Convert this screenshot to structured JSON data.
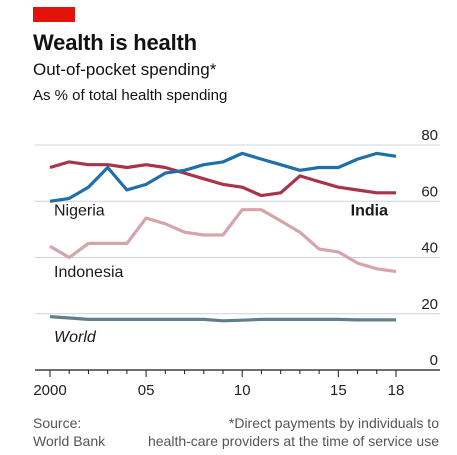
{
  "header": {
    "title": "Wealth is health",
    "subtitle": "Out-of-pocket spending*",
    "unit": "As % of total health spending"
  },
  "footer": {
    "source_label": "Source:",
    "source_name": "World Bank",
    "footnote_line1": "*Direct payments by individuals to",
    "footnote_line2": "health-care providers at the time of service use"
  },
  "colors": {
    "brand_red": "#e3120b",
    "nigeria": "#1f6fa8",
    "india": "#a8334a",
    "indonesia": "#d6a4ab",
    "world": "#5f7f8a",
    "grid": "#c9d5dc",
    "axis": "#1a1a1a"
  },
  "chart_data": {
    "type": "line",
    "title": "Wealth is health",
    "subtitle": "Out-of-pocket spending*",
    "ylabel": "As % of total health spending",
    "xlim": [
      2000,
      2018
    ],
    "ylim": [
      0,
      80
    ],
    "yticks": [
      0,
      20,
      40,
      60,
      80
    ],
    "xticks": [
      2000,
      2005,
      2010,
      2015,
      2018
    ],
    "xtick_labels": [
      "2000",
      "05",
      "10",
      "15",
      "18"
    ],
    "grid": true,
    "x": [
      2000,
      2001,
      2002,
      2003,
      2004,
      2005,
      2006,
      2007,
      2008,
      2009,
      2010,
      2011,
      2012,
      2013,
      2014,
      2015,
      2016,
      2017,
      2018
    ],
    "series": [
      {
        "name": "Nigeria",
        "color": "#1f6fa8",
        "values": [
          60,
          61,
          65,
          72,
          64,
          66,
          70,
          71,
          73,
          74,
          77,
          75,
          73,
          71,
          72,
          72,
          75,
          77,
          76
        ]
      },
      {
        "name": "India",
        "color": "#a8334a",
        "values": [
          72,
          74,
          73,
          73,
          72,
          73,
          72,
          70,
          68,
          66,
          65,
          62,
          63,
          69,
          67,
          65,
          64,
          63,
          63
        ]
      },
      {
        "name": "Indonesia",
        "color": "#d6a4ab",
        "values": [
          44,
          40,
          45,
          45,
          45,
          54,
          52,
          49,
          48,
          48,
          57,
          57,
          53,
          49,
          43,
          42,
          38,
          36,
          35
        ]
      },
      {
        "name": "World",
        "color": "#5f7f8a",
        "values": [
          19,
          18.5,
          18,
          18,
          18,
          18,
          18,
          18,
          18,
          17.5,
          17.7,
          18,
          18,
          18,
          18,
          18,
          17.8,
          17.8,
          17.8
        ]
      }
    ],
    "series_labels": [
      {
        "text": "Nigeria",
        "series": "Nigeria",
        "at_x": 2000,
        "at_y": 55,
        "bold": false,
        "italic": false,
        "anchor": "start"
      },
      {
        "text": "India",
        "series": "India",
        "at_x": 2018,
        "at_y": 55,
        "bold": true,
        "italic": false,
        "anchor": "end"
      },
      {
        "text": "Indonesia",
        "series": "Indonesia",
        "at_x": 2000,
        "at_y": 33,
        "bold": false,
        "italic": false,
        "anchor": "start"
      },
      {
        "text": "World",
        "series": "World",
        "at_x": 2000,
        "at_y": 10,
        "bold": false,
        "italic": true,
        "anchor": "start"
      }
    ]
  }
}
